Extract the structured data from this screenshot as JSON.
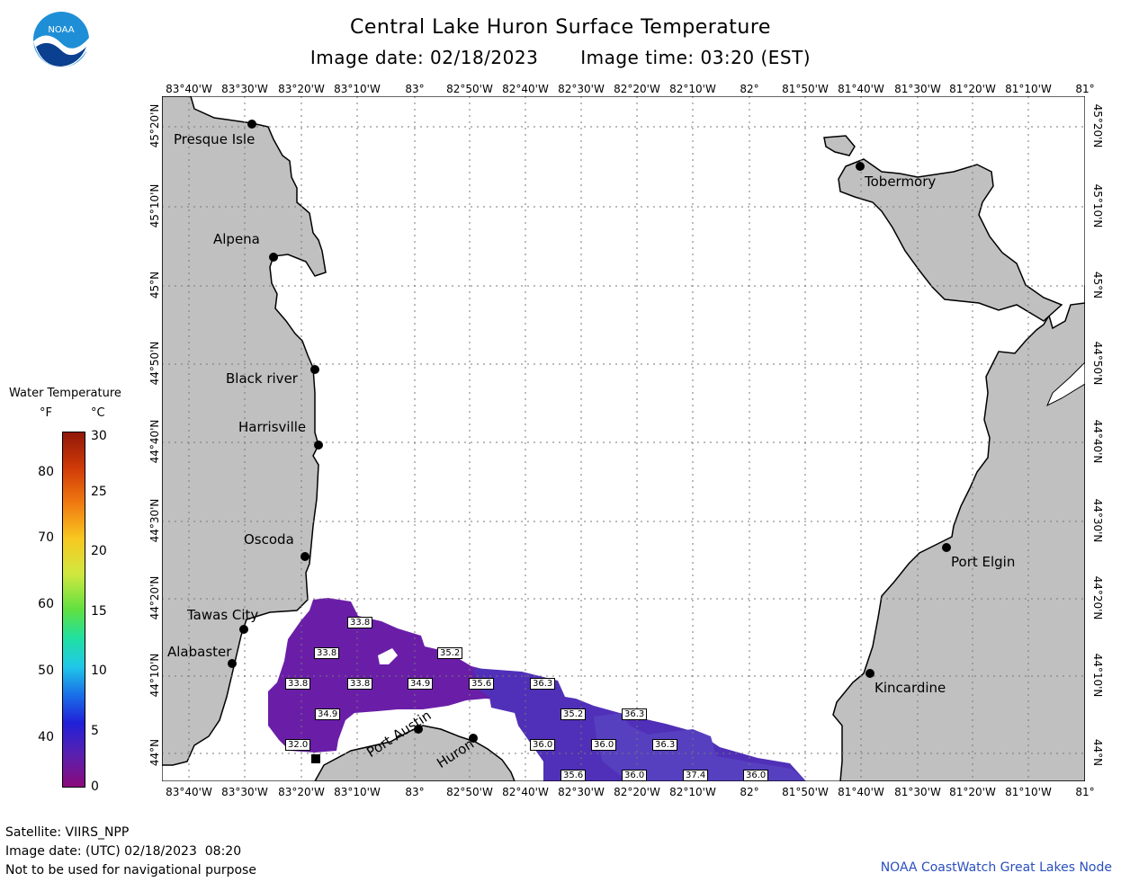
{
  "title": "Central Lake Huron Surface Temperature",
  "image_date_label": "Image date: 02/18/2023",
  "image_time_label": "Image time: 03:20 (EST)",
  "logo_text": "NOAA",
  "lon_labels": [
    "83°40'W",
    "83°30'W",
    "83°20'W",
    "83°10'W",
    "83°",
    "82°50'W",
    "82°40'W",
    "82°30'W",
    "82°20'W",
    "82°10'W",
    "82°",
    "81°50'W",
    "81°40'W",
    "81°30'W",
    "81°20'W",
    "81°10'W",
    "81°"
  ],
  "lat_labels": [
    "45°20'N",
    "45°10'N",
    "45°N",
    "44°50'N",
    "44°40'N",
    "44°30'N",
    "44°20'N",
    "44°10'N",
    "44°N"
  ],
  "legend": {
    "title": "Water Temperature",
    "unit_f": "°F",
    "unit_c": "°C",
    "f_ticks": [
      "80",
      "70",
      "60",
      "50",
      "40"
    ],
    "c_ticks": [
      "30",
      "25",
      "20",
      "15",
      "10",
      "5",
      "0"
    ]
  },
  "cities": {
    "presque_isle": "Presque Isle",
    "alpena": "Alpena",
    "black_river": "Black river",
    "harrisville": "Harrisville",
    "oscoda": "Oscoda",
    "tawas_city": "Tawas City",
    "alabaster": "Alabaster",
    "port_austin": "Port Austin",
    "huron": "Huron",
    "tobermory": "Tobermory",
    "port_elgin": "Port Elgin",
    "kincardine": "Kincardine"
  },
  "temps": [
    "33.8",
    "33.8",
    "35.2",
    "33.8",
    "33.8",
    "34.9",
    "35.6",
    "36.3",
    "34.9",
    "35.2",
    "36.3",
    "32.0",
    "36.0",
    "36.0",
    "36.3",
    "35.6",
    "36.0",
    "37.4",
    "36.0"
  ],
  "footer": {
    "satellite": "Satellite: VIIRS_NPP",
    "utc_date": "Image date: (UTC) 02/18/2023  08:20",
    "warning": "Not to be used for navigational purpose"
  },
  "credit": "NOAA CoastWatch Great Lakes Node",
  "colors": {
    "land": "#c0c0c0",
    "water": "#ffffff",
    "grid": "#888888",
    "credit": "#2a4fbf",
    "noaa_blue": "#1e5aa8"
  }
}
